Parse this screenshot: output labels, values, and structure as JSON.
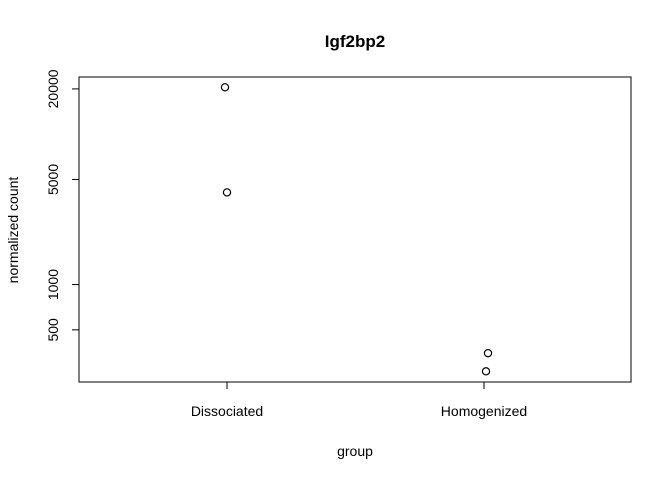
{
  "chart_data": {
    "type": "scatter",
    "title": "Igf2bp2",
    "xlabel": "group",
    "ylabel": "normalized count",
    "categories": [
      "Dissociated",
      "Homogenized"
    ],
    "y_scale": "log",
    "ylim": [
      225,
      24000
    ],
    "y_ticks": [
      500,
      1000,
      5000,
      20000
    ],
    "y_tick_labels": [
      "500",
      "1000",
      "5000",
      "20000"
    ],
    "grid": false,
    "legend": "none",
    "points": [
      {
        "group": "Dissociated",
        "y": 20500
      },
      {
        "group": "Dissociated",
        "y": 4100
      },
      {
        "group": "Homogenized",
        "y": 350
      },
      {
        "group": "Homogenized",
        "y": 265
      }
    ]
  }
}
